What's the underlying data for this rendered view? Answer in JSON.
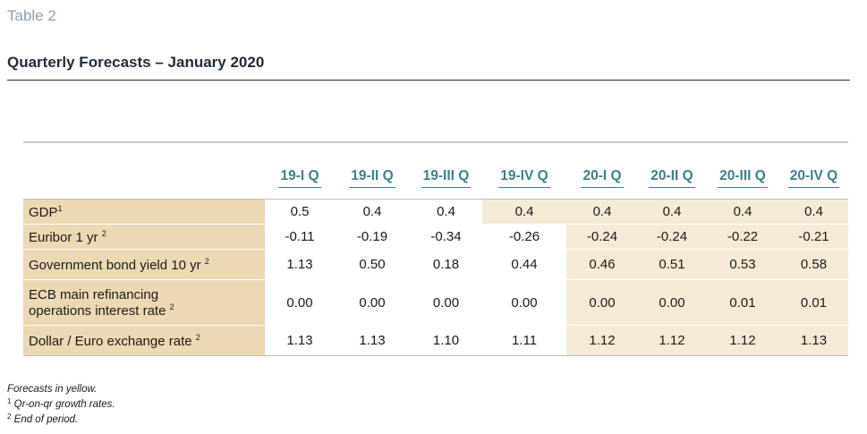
{
  "caption": "Table 2",
  "title": "Quarterly Forecasts – January 2020",
  "columns": [
    "19-I Q",
    "19-II Q",
    "19-III Q",
    "19-IV Q",
    "20-I Q",
    "20-II Q",
    "20-III Q",
    "20-IV Q"
  ],
  "rows": [
    {
      "label": "GDP",
      "sup": "1",
      "values": [
        "0.5",
        "0.4",
        "0.4",
        "0.4",
        "0.4",
        "0.4",
        "0.4",
        "0.4"
      ],
      "forecast_from": 3
    },
    {
      "label": "Euribor 1 yr ",
      "sup": "2",
      "values": [
        "-0.11",
        "-0.19",
        "-0.34",
        "-0.26",
        "-0.24",
        "-0.24",
        "-0.22",
        "-0.21"
      ],
      "forecast_from": 4
    },
    {
      "label": "Government bond yield 10 yr ",
      "sup": "2",
      "values": [
        "1.13",
        "0.50",
        "0.18",
        "0.44",
        "0.46",
        "0.51",
        "0.53",
        "0.58"
      ],
      "forecast_from": 4
    },
    {
      "label": "ECB main refinancing",
      "label2": "operations interest rate ",
      "sup": "2",
      "values": [
        "0.00",
        "0.00",
        "0.00",
        "0.00",
        "0.00",
        "0.00",
        "0.01",
        "0.01"
      ],
      "forecast_from": 4
    },
    {
      "label": "Dollar / Euro exchange rate ",
      "sup": "2",
      "values": [
        "1.13",
        "1.13",
        "1.10",
        "1.11",
        "1.12",
        "1.12",
        "1.12",
        "1.13"
      ],
      "forecast_from": 4
    }
  ],
  "footnotes": [
    {
      "sup": "",
      "text": "Forecasts in yellow."
    },
    {
      "sup": "1",
      "text": " Qr-on-qr growth rates."
    },
    {
      "sup": "2",
      "text": " End of period."
    }
  ],
  "colors": {
    "label_bg": "#ecd8b3",
    "forecast_bg": "#f7ead5",
    "header": "#3d7f8f",
    "caption": "#8aa0b8"
  }
}
